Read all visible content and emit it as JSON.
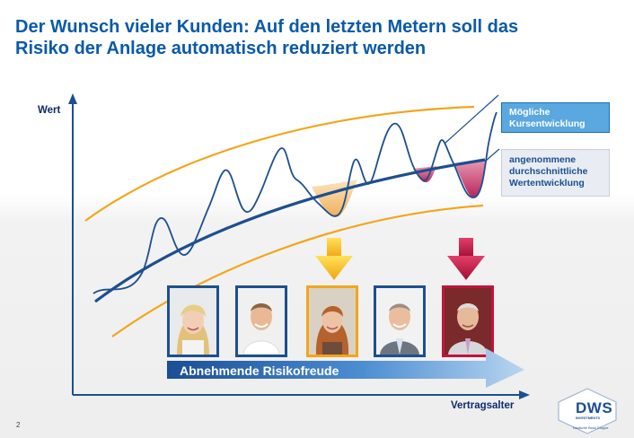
{
  "slide": {
    "title_line1": "Der Wunsch vieler Kunden: Auf den letzten Metern soll das",
    "title_line2": "Risiko der Anlage automatisch reduziert werden",
    "page_number": "2"
  },
  "diagram": {
    "y_axis_label": "Wert",
    "x_axis_label": "Vertragsalter",
    "legend_possible": [
      "Mögliche",
      "Kursentwicklung"
    ],
    "legend_average": [
      "angenommene",
      "durchschnittliche",
      "Wertentwicklung"
    ],
    "risk_arrow_label": "Abnehmende Risikofreude",
    "colors": {
      "title": "#0a5aa8",
      "curve": "#1d4f8f",
      "band": "#f3a51b",
      "dip_orange": "#f2b76a",
      "dip_red": "#c4456e",
      "arrow_gold": "#f3c015",
      "arrow_red": "#b8103a"
    },
    "photos": [
      {
        "name": "young-woman",
        "border": "blue"
      },
      {
        "name": "young-man",
        "border": "blue"
      },
      {
        "name": "middle-aged-woman",
        "border": "orange"
      },
      {
        "name": "middle-aged-man",
        "border": "blue"
      },
      {
        "name": "senior-man",
        "border": "red"
      }
    ]
  },
  "logo": {
    "brand": "DWS",
    "sub": "INVESTMENTS",
    "group": "Deutsche Bank Gruppe"
  }
}
